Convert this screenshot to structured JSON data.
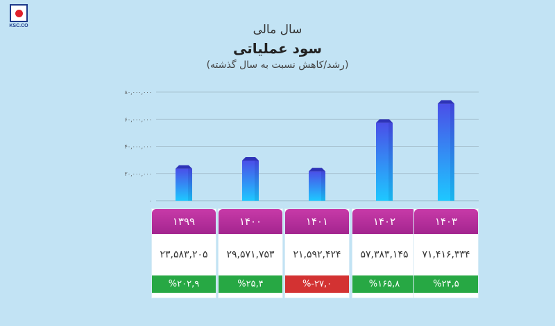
{
  "logo": {
    "text": "KSC.CO"
  },
  "header": {
    "line1": "سال مالی",
    "line2": "سود عملیاتی",
    "line3": "(رشد/کاهش نسبت به سال گذشته)"
  },
  "chart_data": {
    "type": "bar",
    "categories": [
      "۱۳۹۹",
      "۱۴۰۰",
      "۱۴۰۱",
      "۱۴۰۲",
      "۱۴۰۳"
    ],
    "values": [
      23583205,
      29571753,
      21592424,
      57383145,
      71416334
    ],
    "value_labels": [
      "۲۳,۵۸۳,۲۰۵",
      "۲۹,۵۷۱,۷۵۳",
      "۲۱,۵۹۲,۴۲۴",
      "۵۷,۳۸۳,۱۴۵",
      "۷۱,۴۱۶,۳۳۴"
    ],
    "growth_labels": [
      "%۲۰۲,۹",
      "%۲۵,۴",
      "%-۲۷,۰",
      "%۱۶۵,۸",
      "%۲۴,۵"
    ],
    "growth_values": [
      202.9,
      25.4,
      -27.0,
      165.8,
      24.5
    ],
    "yticks": [
      0,
      20000000,
      40000000,
      60000000,
      80000000
    ],
    "ytick_labels": [
      "۰",
      "۲۰,۰۰۰,۰۰۰",
      "۴۰,۰۰۰,۰۰۰",
      "۶۰,۰۰۰,۰۰۰",
      "۸۰,۰۰۰,۰۰۰"
    ],
    "ylim": [
      0,
      80000000
    ],
    "grid": true,
    "colors": {
      "bar_top": "#4a4fe8",
      "bar_bottom": "#1ec8ff",
      "header": "#b02d9b",
      "positive": "#27a844",
      "negative": "#d33232"
    }
  }
}
